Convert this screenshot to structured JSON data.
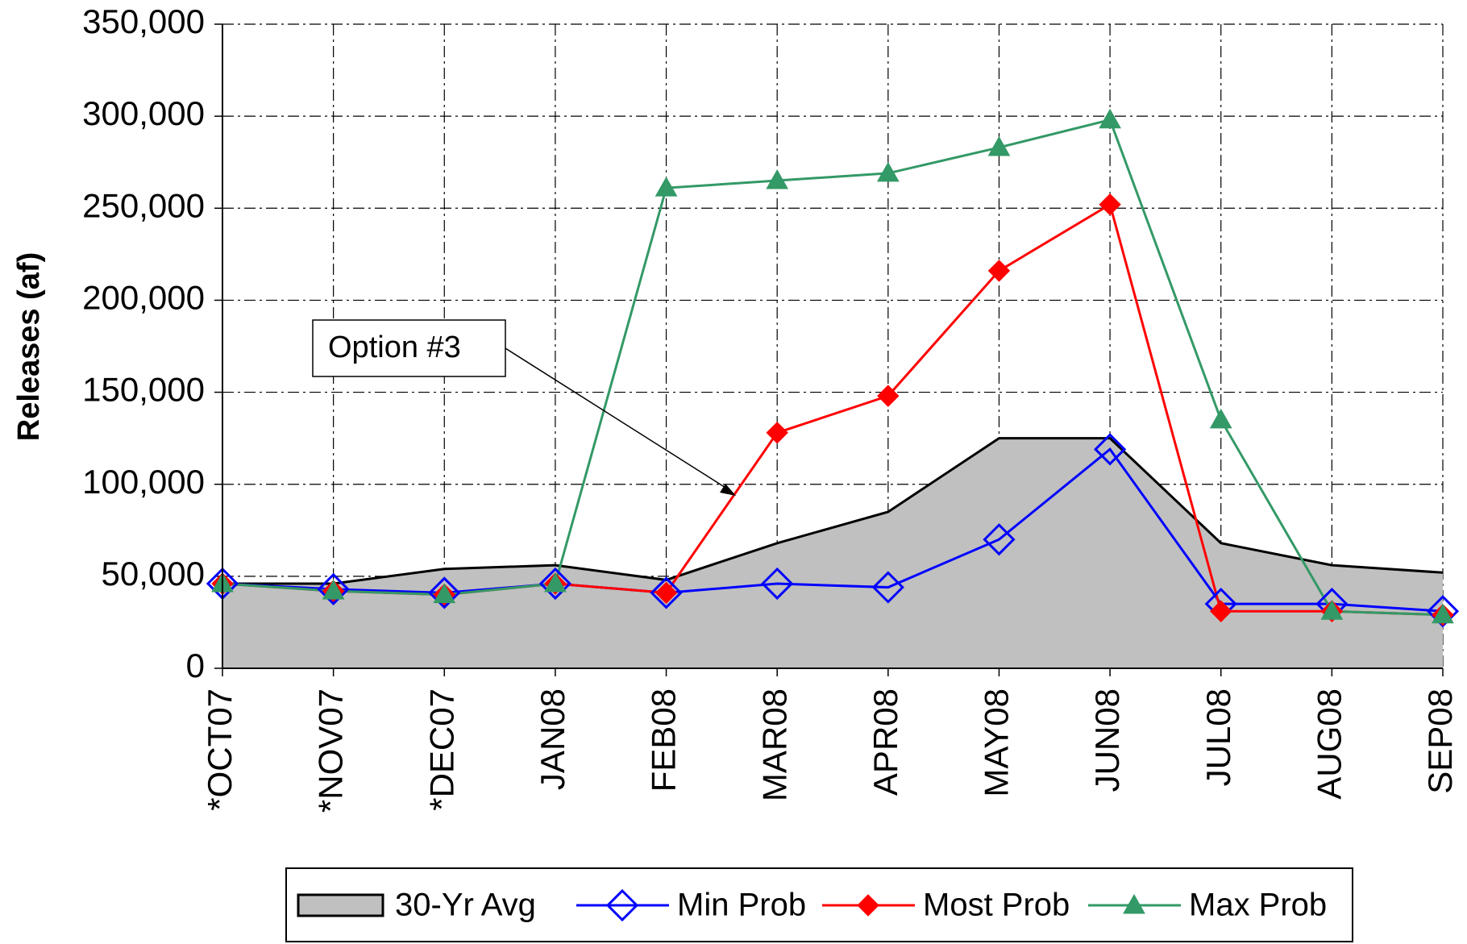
{
  "chart_data": {
    "type": "line",
    "y_label": "Releases (af)",
    "categories": [
      "*OCT07",
      "*NOV07",
      "*DEC07",
      "JAN08",
      "FEB08",
      "MAR08",
      "APR08",
      "MAY08",
      "JUN08",
      "JUL08",
      "AUG08",
      "SEP08"
    ],
    "series": [
      {
        "name": "30-Yr Avg",
        "color": "#c0c0c0",
        "style": "area",
        "values": [
          46000,
          46000,
          54000,
          56000,
          48000,
          68000,
          85000,
          125000,
          125000,
          68000,
          56000,
          52000
        ]
      },
      {
        "name": "Min Prob",
        "color": "#0000ff",
        "style": "line",
        "marker": "diamond-open",
        "values": [
          46000,
          43000,
          41000,
          46000,
          41000,
          46000,
          44000,
          70000,
          119000,
          35000,
          35000,
          31000
        ]
      },
      {
        "name": "Most Prob",
        "color": "#ff0000",
        "style": "line",
        "marker": "diamond",
        "values": [
          46000,
          42000,
          40000,
          46000,
          41000,
          128000,
          148000,
          216000,
          252000,
          31000,
          31000,
          29000
        ]
      },
      {
        "name": "Max Prob",
        "color": "#339966",
        "style": "line",
        "marker": "triangle",
        "values": [
          46000,
          42000,
          40000,
          46000,
          261000,
          265000,
          269000,
          283000,
          298000,
          135000,
          31000,
          29000
        ]
      }
    ],
    "ylim": [
      0,
      350000
    ],
    "yticks": [
      0,
      {
        "value": 50000,
        "label": "50,000"
      },
      {
        "value": 100000,
        "label": "100,000"
      },
      {
        "value": 150000,
        "label": "150,000"
      },
      {
        "value": 200000,
        "label": "200,000"
      },
      {
        "value": 250000,
        "label": "250,000"
      },
      {
        "value": 300000,
        "label": "300,000"
      },
      {
        "value": 350000,
        "label": "350,000"
      }
    ],
    "grid": true,
    "annotation": "Option #3"
  }
}
